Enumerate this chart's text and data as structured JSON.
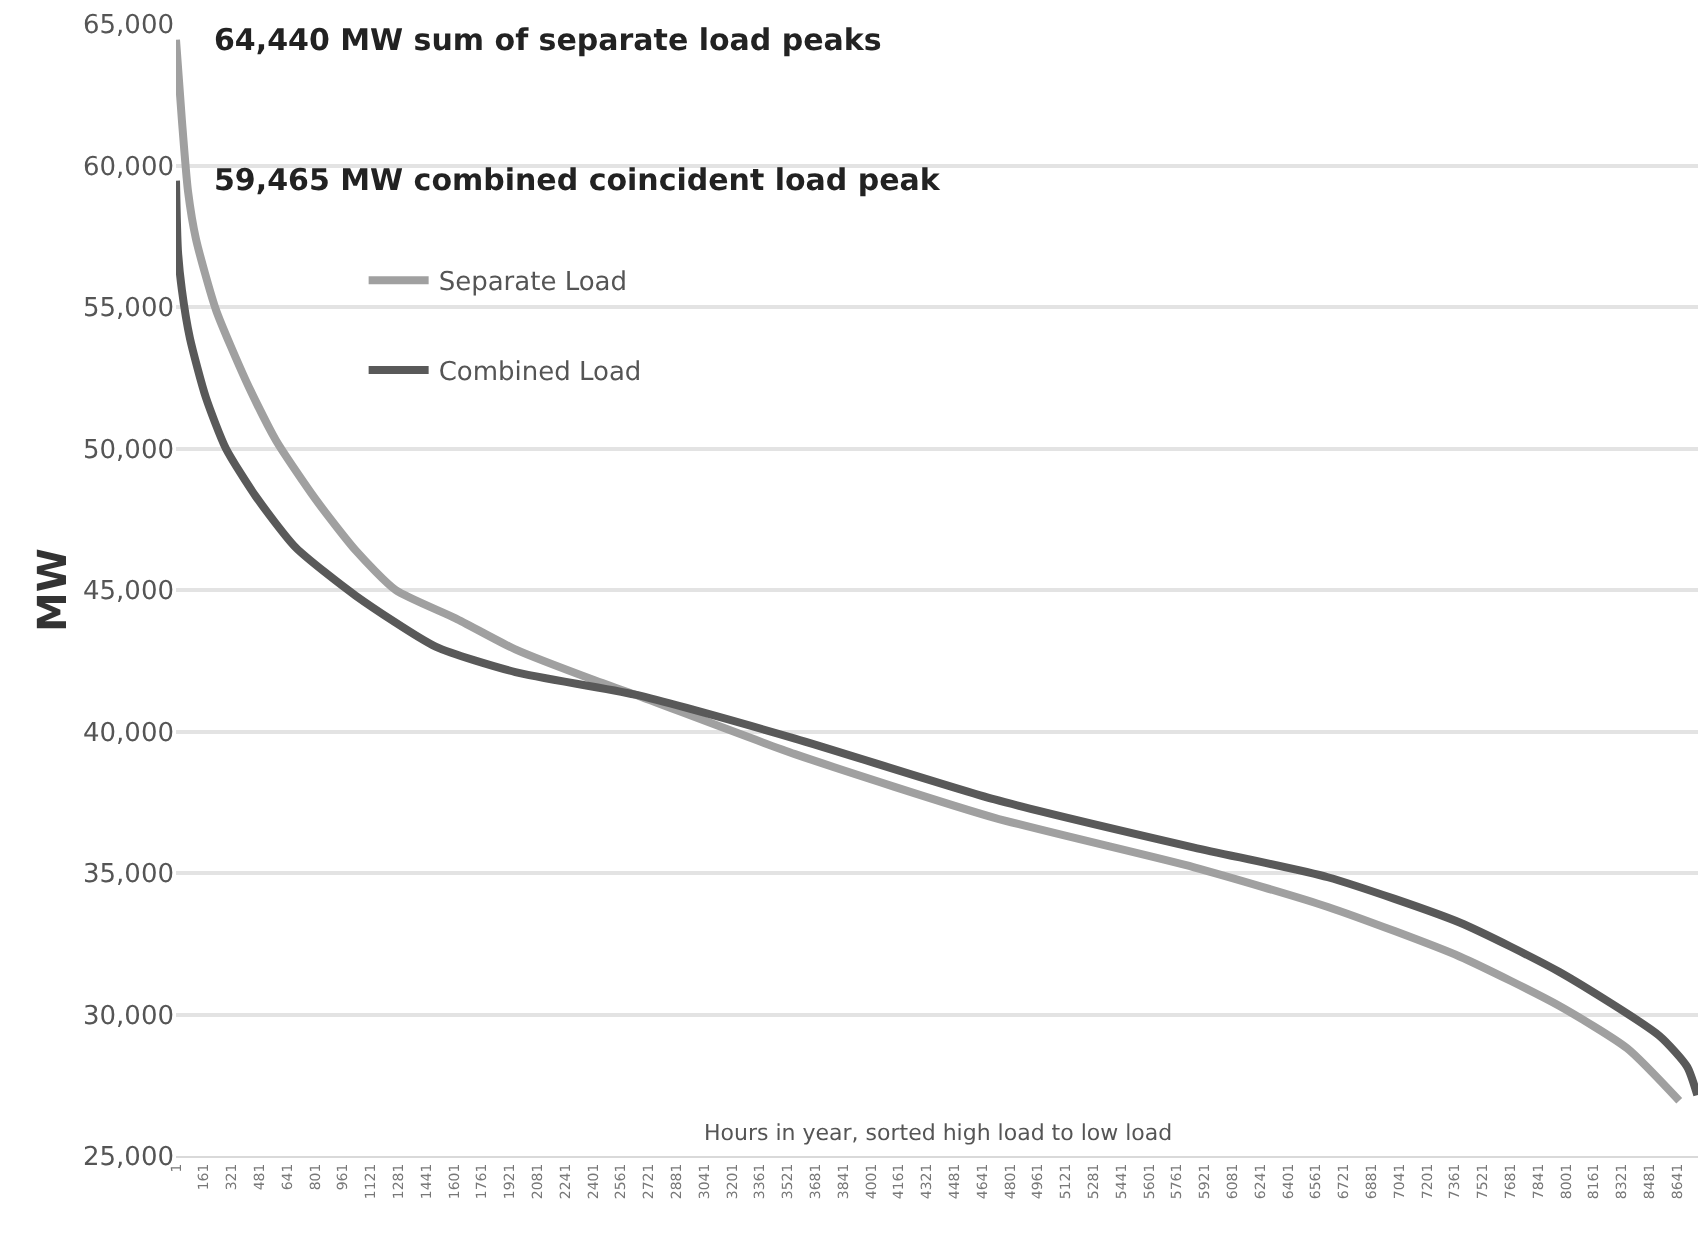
{
  "chart_data": {
    "type": "line",
    "xlabel": "Hours in year, sorted high load to low load",
    "ylabel": "MW",
    "annotations": [
      "64,440 MW sum of separate load peaks",
      "59,465 MW combined coincident load peak"
    ],
    "series": [
      {
        "name": "Separate Load",
        "color": "#a0a0a0",
        "x": [
          1,
          35,
          70,
          116,
          231,
          403,
          575,
          805,
          1035,
          1265,
          1610,
          1954,
          2414,
          2644,
          3563,
          4712,
          5860,
          6630,
          7388,
          7963,
          8353,
          8652
        ],
        "values": [
          64440,
          61600,
          59100,
          57400,
          54900,
          52400,
          50300,
          48200,
          46400,
          45000,
          44000,
          42900,
          41800,
          41300,
          39200,
          36950,
          35200,
          33800,
          32050,
          30300,
          28800,
          26950
        ]
      },
      {
        "name": "Combined Load",
        "color": "#595959",
        "x": [
          1,
          12,
          35,
          81,
          173,
          288,
          461,
          690,
          1035,
          1495,
          1954,
          2644,
          3563,
          4712,
          5860,
          6630,
          7388,
          7963,
          8537,
          8698,
          8756
        ],
        "values": [
          59465,
          57000,
          55600,
          53900,
          51800,
          50000,
          48300,
          46500,
          44800,
          43000,
          42100,
          41300,
          39750,
          37600,
          35900,
          34850,
          33250,
          31500,
          29250,
          28150,
          27150
        ]
      }
    ],
    "xlim": [
      1,
      8760
    ],
    "xticks": [
      1,
      161,
      321,
      481,
      641,
      801,
      961,
      1121,
      1281,
      1441,
      1601,
      1761,
      1921,
      2081,
      2241,
      2401,
      2561,
      2721,
      2881,
      3041,
      3201,
      3361,
      3521,
      3681,
      3841,
      4001,
      4161,
      4321,
      4481,
      4641,
      4801,
      4961,
      5121,
      5281,
      5441,
      5601,
      5761,
      5921,
      6081,
      6241,
      6401,
      6561,
      6721,
      6881,
      7041,
      7201,
      7361,
      7521,
      7681,
      7841,
      8001,
      8161,
      8321,
      8481,
      8641
    ],
    "ylim": [
      25000,
      65000
    ],
    "yticks": [
      {
        "value": 25000,
        "label": "25,000"
      },
      {
        "value": 30000,
        "label": "30,000"
      },
      {
        "value": 35000,
        "label": "35,000"
      },
      {
        "value": 40000,
        "label": "40,000"
      },
      {
        "value": 45000,
        "label": "45,000"
      },
      {
        "value": 50000,
        "label": "50,000"
      },
      {
        "value": 55000,
        "label": "55,000"
      },
      {
        "value": 60000,
        "label": "60,000"
      },
      {
        "value": 65000,
        "label": "65,000"
      }
    ],
    "grid": "y",
    "legend": "top left",
    "marker": "none",
    "line_style": "solid"
  }
}
